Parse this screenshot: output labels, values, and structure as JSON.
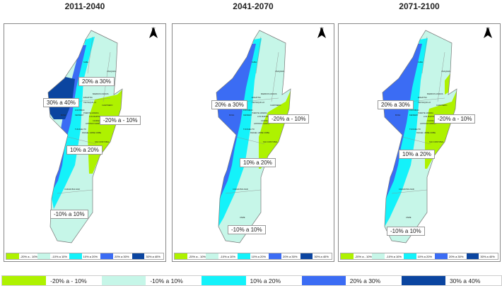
{
  "colors": {
    "green": "#aef200",
    "light": "#c6f6e8",
    "cyan": "#14f2fa",
    "blue": "#3b6cf4",
    "dark": "#0b45a0"
  },
  "legend": [
    {
      "label": "-20% a - 10%",
      "color": "#aef200"
    },
    {
      "label": "-10% a 10%",
      "color": "#c6f6e8"
    },
    {
      "label": "10% a 20%",
      "color": "#14f2fa"
    },
    {
      "label": "20% a 30%",
      "color": "#3b6cf4"
    },
    {
      "label": "30% a 40%",
      "color": "#0b45a0"
    }
  ],
  "north_label": "N",
  "localities": [
    "SUBA",
    "USAQUEN",
    "BARRIOS UNIDOS",
    "TEUSAQUILLO",
    "CHAPINERO",
    "ENGATIVA",
    "FONTIBON",
    "KENNEDY",
    "BOSA",
    "PUENTE ARANDA",
    "LOS MARTIRES",
    "CANDELARIA",
    "SANTA FE",
    "ANTONIO NARIÑO",
    "TUNJUELITO",
    "RAFAEL URIBE URIBE",
    "SAN CRISTOBAL",
    "CIUDAD BOLIVAR",
    "USME"
  ],
  "panels": [
    {
      "title": "2011-2040",
      "labels": [
        "20% a 30%",
        "30% a 40%",
        "-20% a - 10%",
        "10% a 20%",
        "-10% a 10%"
      ]
    },
    {
      "title": "2041-2070",
      "labels": [
        "20% a 30%",
        "-20% a - 10%",
        "10% a 20%",
        "-10% a 10%"
      ]
    },
    {
      "title": "2071-2100",
      "labels": [
        "20% a 30%",
        "-20% a - 10%",
        "10% a 20%",
        "-10% a 10%"
      ]
    }
  ]
}
